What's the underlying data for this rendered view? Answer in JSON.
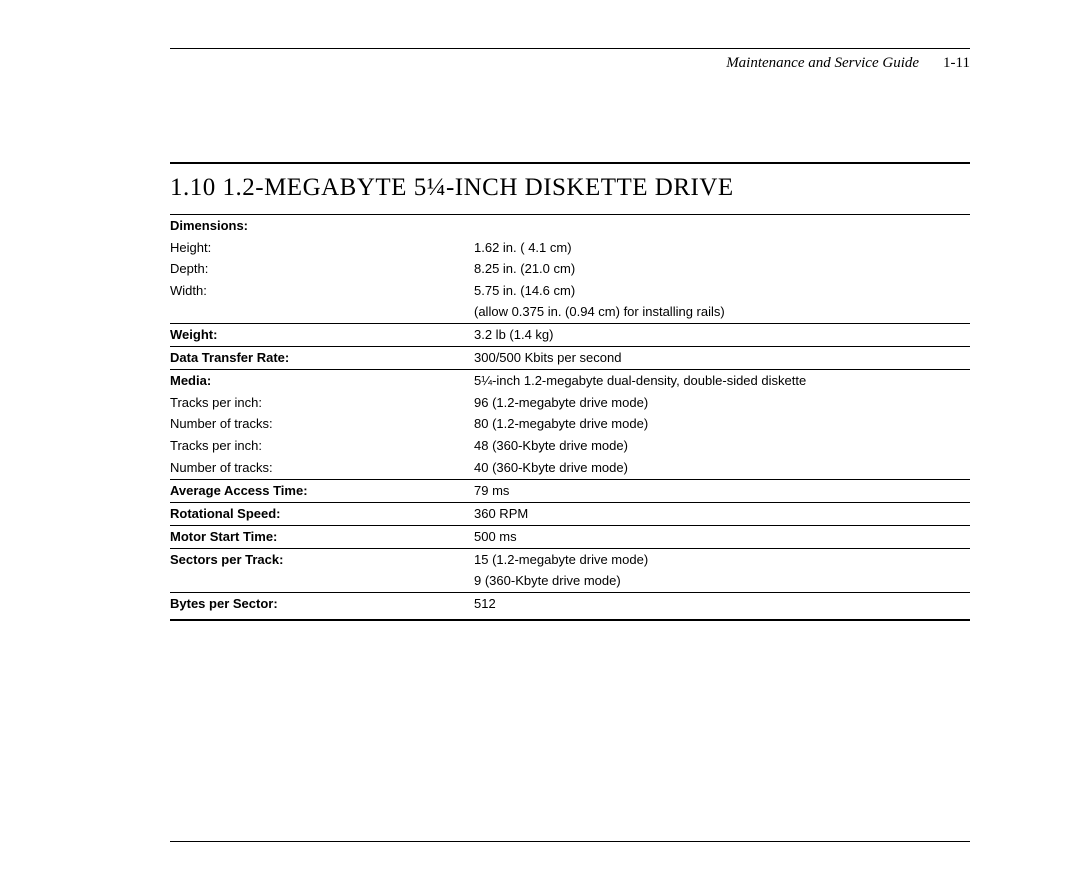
{
  "header": {
    "title": "Maintenance and Service Guide",
    "page": "1-11"
  },
  "section": {
    "title": "1.10 1.2-MEGABYTE 5¼-INCH DISKETTE DRIVE"
  },
  "specs": {
    "dimensions": {
      "label": "Dimensions:",
      "rows": [
        {
          "label": "Height:",
          "value": "1.62 in. ( 4.1 cm)"
        },
        {
          "label": "Depth:",
          "value": "8.25 in. (21.0 cm)"
        },
        {
          "label": "Width:",
          "value": "5.75 in. (14.6 cm)"
        },
        {
          "label": "",
          "value": "(allow 0.375 in. (0.94 cm) for installing rails)"
        }
      ]
    },
    "weight": {
      "label": "Weight:",
      "value": "3.2 lb (1.4 kg)"
    },
    "transfer": {
      "label": "Data Transfer Rate:",
      "value": "300/500 Kbits per second"
    },
    "media": {
      "label": "Media:",
      "value": "5¼-inch 1.2-megabyte dual-density, double-sided diskette",
      "rows": [
        {
          "label": "Tracks per inch:",
          "value": "96 (1.2-megabyte drive mode)"
        },
        {
          "label": "Number of tracks:",
          "value": "80 (1.2-megabyte drive mode)"
        },
        {
          "label": "Tracks per inch:",
          "value": "48 (360-Kbyte drive mode)"
        },
        {
          "label": "Number of tracks:",
          "value": "40 (360-Kbyte drive mode)"
        }
      ]
    },
    "access": {
      "label": "Average Access Time:",
      "value": "79 ms"
    },
    "rotation": {
      "label": "Rotational Speed:",
      "value": "360 RPM"
    },
    "motor": {
      "label": "Motor Start Time:",
      "value": "500 ms"
    },
    "sectors": {
      "label": "Sectors per Track:",
      "rows": [
        {
          "value": "15 (1.2-megabyte drive mode)"
        },
        {
          "value": " 9 (360-Kbyte drive mode)"
        }
      ]
    },
    "bytes": {
      "label": "Bytes per Sector:",
      "value": "512"
    }
  }
}
